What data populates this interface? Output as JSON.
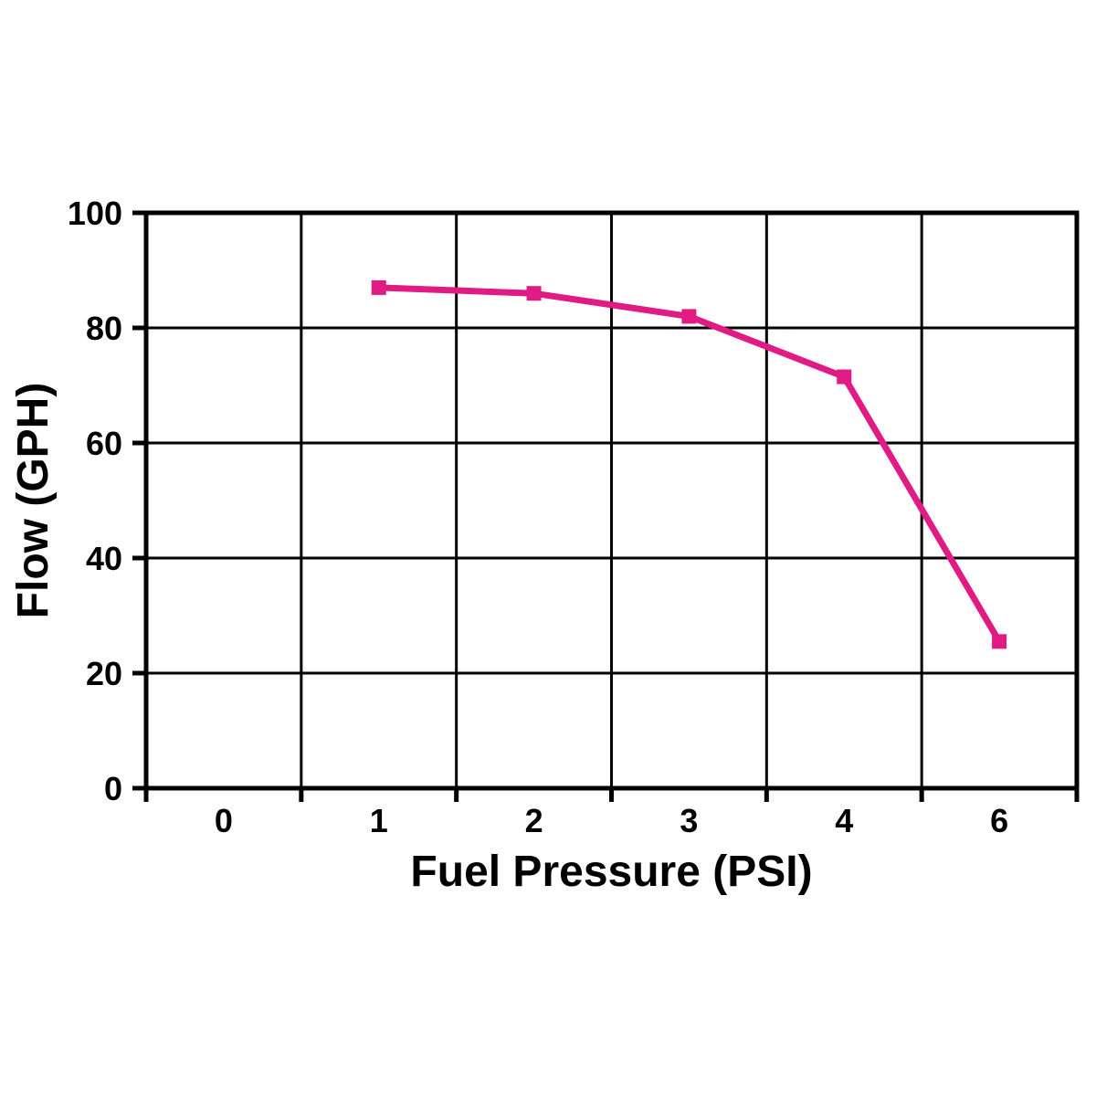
{
  "chart_data": {
    "type": "line",
    "title": "",
    "xlabel": "Fuel Pressure (PSI)",
    "ylabel": "Flow (GPH)",
    "x_tick_labels": [
      "0",
      "1",
      "2",
      "3",
      "4",
      "6"
    ],
    "y_ticks": [
      0,
      20,
      40,
      60,
      80,
      100
    ],
    "ylim": [
      0,
      100
    ],
    "grid": true,
    "legend_position": "none",
    "colors": {
      "line": "#e01b84",
      "grid": "#000000",
      "text": "#000000",
      "background": "#ffffff"
    },
    "series": [
      {
        "name": "flow-vs-pressure",
        "color": "#e01b84",
        "marker": "square",
        "points": [
          {
            "x_label": "1",
            "x_index": 1,
            "y": 87
          },
          {
            "x_label": "2",
            "x_index": 2,
            "y": 86
          },
          {
            "x_label": "3",
            "x_index": 3,
            "y": 82
          },
          {
            "x_label": "4",
            "x_index": 4,
            "y": 71.5
          },
          {
            "x_label": "6",
            "x_index": 5,
            "y": 25.5
          }
        ]
      }
    ]
  }
}
